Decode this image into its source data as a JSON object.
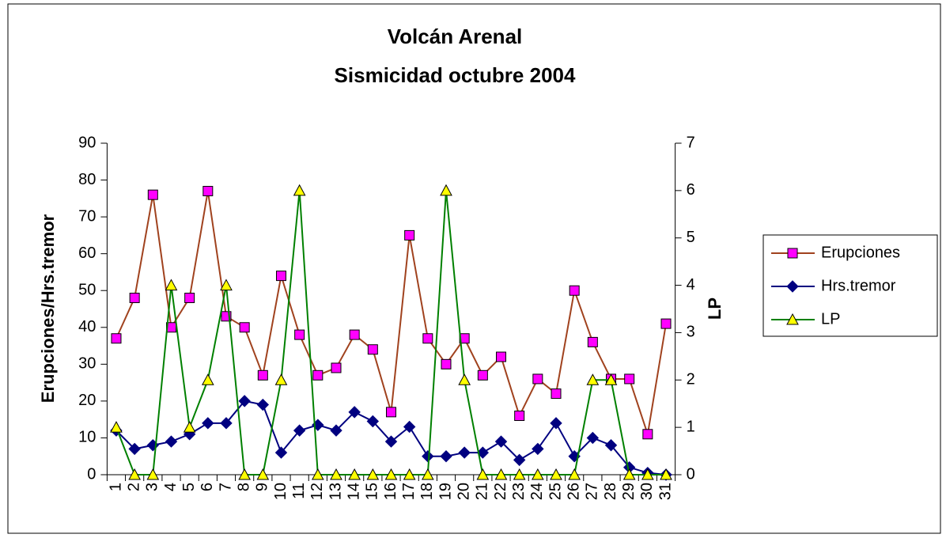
{
  "chart_data": {
    "type": "line",
    "title": "Volcán Arenal",
    "subtitle": "Sismicidad octubre 2004",
    "ylabel": "Erupciones/Hrs.tremor",
    "y2label": "LP",
    "categories": [
      "1",
      "2",
      "3",
      "4",
      "5",
      "6",
      "7",
      "8",
      "9",
      "10",
      "11",
      "12",
      "13",
      "14",
      "15",
      "16",
      "17",
      "18",
      "19",
      "20",
      "21",
      "22",
      "23",
      "24",
      "25",
      "26",
      "27",
      "28",
      "29",
      "30",
      "31"
    ],
    "ylim": [
      0,
      90
    ],
    "yticks": [
      0,
      10,
      20,
      30,
      40,
      50,
      60,
      70,
      80,
      90
    ],
    "y2lim": [
      0,
      7
    ],
    "y2ticks": [
      0,
      1,
      2,
      3,
      4,
      5,
      6,
      7
    ],
    "legend": "right",
    "series": [
      {
        "name": "Erupciones",
        "color": "#A0421E",
        "marker_color": "#FF00FF",
        "marker": "square",
        "values": [
          37,
          48,
          76,
          40,
          48,
          77,
          43,
          40,
          27,
          54,
          38,
          27,
          29,
          38,
          34,
          17,
          65,
          37,
          30,
          37,
          27,
          32,
          16,
          26,
          22,
          50,
          36,
          26,
          26,
          11,
          41
        ]
      },
      {
        "name": "Hrs.tremor",
        "color": "#000080",
        "marker_color": "#000080",
        "marker": "diamond",
        "values": [
          12,
          7,
          8,
          9,
          11,
          14,
          14,
          20,
          19,
          6,
          12,
          13.5,
          12,
          17,
          14.5,
          9,
          13,
          5,
          5,
          6,
          6,
          9,
          4,
          7,
          14,
          5,
          10,
          8,
          2,
          0.5,
          0
        ]
      },
      {
        "name": "LP",
        "color": "#008000",
        "marker_color": "#FFFF00",
        "marker": "triangle",
        "axis": "y2",
        "values": [
          1,
          0,
          0,
          4,
          1,
          2,
          4,
          0,
          0,
          2,
          6,
          0,
          0,
          0,
          0,
          0,
          0,
          0,
          6,
          2,
          0,
          0,
          0,
          0,
          0,
          0,
          2,
          2,
          0,
          0,
          0
        ]
      }
    ]
  }
}
